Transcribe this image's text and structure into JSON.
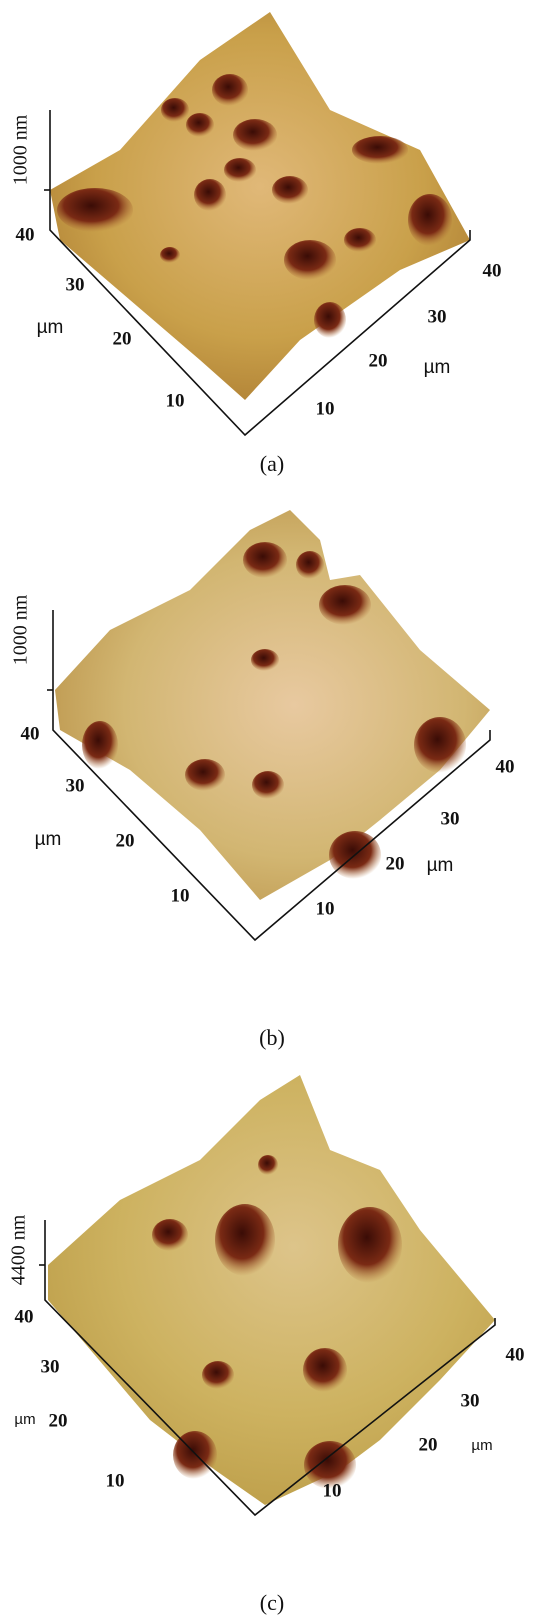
{
  "panels": [
    {
      "z_label": "1000 nm",
      "left_ticks": [
        "40",
        "30",
        "20",
        "10"
      ],
      "left_unit": "µm",
      "right_ticks": [
        "40",
        "30",
        "20",
        "10"
      ],
      "right_unit": "µm",
      "caption": "(a)"
    },
    {
      "z_label": "1000 nm",
      "left_ticks": [
        "40",
        "30",
        "20",
        "10"
      ],
      "left_unit": "µm",
      "right_ticks": [
        "40",
        "30",
        "20",
        "10"
      ],
      "right_unit": "µm",
      "caption": "(b)"
    },
    {
      "z_label": "4400 nm",
      "left_ticks": [
        "40",
        "30",
        "20",
        "10"
      ],
      "left_unit": "µm",
      "right_ticks": [
        "40",
        "30",
        "20",
        "10"
      ],
      "right_unit": "µm",
      "caption": "(c)"
    }
  ]
}
